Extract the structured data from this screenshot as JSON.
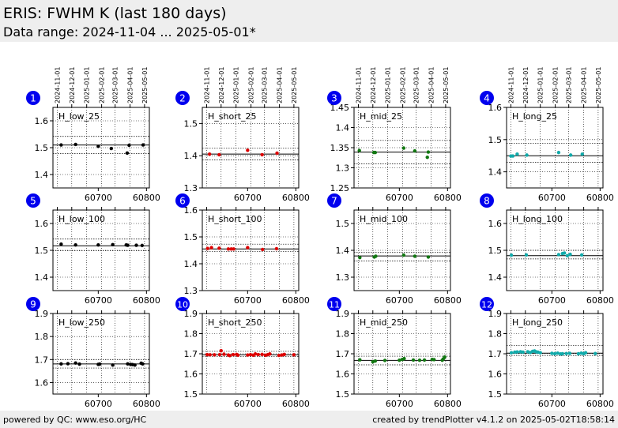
{
  "header": {
    "title": "ERIS: FWHM K (last 180 days)",
    "subtitle": "Data range: 2024-11-04 ... 2025-05-01*"
  },
  "footer": {
    "left": "powered by QC: www.eso.org/HC",
    "right": "created by trendPlotter v4.1.2 on 2025-05-02T18:58:14"
  },
  "colors": {
    "badge": "#0000ee",
    "black": "#000000",
    "red": "#dd0000",
    "green": "#117711",
    "teal": "#11aaaa"
  },
  "date_labels": [
    "2024-11-01",
    "2024-12-01",
    "2025-01-01",
    "2025-02-01",
    "2025-03-01",
    "2025-04-01",
    "2025-05-01"
  ],
  "date_mjd": [
    60615,
    60645,
    60676,
    60707,
    60735,
    60766,
    60796
  ],
  "xlim": [
    60606,
    60806
  ],
  "xticks": [
    60700,
    60800
  ],
  "chart_data": [
    {
      "type": "scatter",
      "badge": "1",
      "label": "H_low_25",
      "color": "black",
      "ylim": [
        1.35,
        1.65
      ],
      "yticks": [
        1.4,
        1.5,
        1.6
      ],
      "median": 1.51,
      "band": [
        1.478,
        1.542
      ],
      "points": [
        [
          60623,
          1.51
        ],
        [
          60653,
          1.512
        ],
        [
          60700,
          1.505
        ],
        [
          60727,
          1.497
        ],
        [
          60760,
          1.48
        ],
        [
          60764,
          1.509
        ],
        [
          60793,
          1.51
        ]
      ]
    },
    {
      "type": "scatter",
      "badge": "2",
      "label": "H_short_25",
      "color": "red",
      "ylim": [
        1.3,
        1.55
      ],
      "yticks": [
        1.3,
        1.4,
        1.5
      ],
      "median": 1.405,
      "band": [
        1.387,
        1.423
      ],
      "points": [
        [
          60621,
          1.405
        ],
        [
          60641,
          1.403
        ],
        [
          60700,
          1.417
        ],
        [
          60730,
          1.403
        ],
        [
          60761,
          1.408
        ]
      ]
    },
    {
      "type": "scatter",
      "badge": "3",
      "label": "H_mid_25",
      "color": "green",
      "ylim": [
        1.25,
        1.45
      ],
      "yticks": [
        1.25,
        1.3,
        1.35,
        1.4,
        1.45
      ],
      "median": 1.339,
      "band": [
        1.31,
        1.368
      ],
      "points": [
        [
          60617,
          1.343
        ],
        [
          60647,
          1.338
        ],
        [
          60650,
          1.338
        ],
        [
          60709,
          1.349
        ],
        [
          60732,
          1.342
        ],
        [
          60758,
          1.326
        ],
        [
          60760,
          1.339
        ]
      ]
    },
    {
      "type": "scatter",
      "badge": "4",
      "label": "H_long_25",
      "color": "teal",
      "ylim": [
        1.35,
        1.6
      ],
      "yticks": [
        1.4,
        1.5,
        1.6
      ],
      "median": 1.45,
      "band": [
        1.43,
        1.488
      ],
      "points": [
        [
          60615,
          1.449
        ],
        [
          60619,
          1.449
        ],
        [
          60628,
          1.455
        ],
        [
          60648,
          1.452
        ],
        [
          60714,
          1.46
        ],
        [
          60739,
          1.452
        ],
        [
          60763,
          1.455
        ]
      ]
    },
    {
      "type": "scatter",
      "badge": "5",
      "label": "H_low_100",
      "color": "black",
      "ylim": [
        1.35,
        1.65
      ],
      "yticks": [
        1.4,
        1.5,
        1.6
      ],
      "median": 1.517,
      "band": [
        1.498,
        1.542
      ],
      "points": [
        [
          60623,
          1.523
        ],
        [
          60653,
          1.52
        ],
        [
          60700,
          1.52
        ],
        [
          60730,
          1.521
        ],
        [
          60758,
          1.52
        ],
        [
          60761,
          1.519
        ],
        [
          60779,
          1.519
        ],
        [
          60791,
          1.518
        ]
      ]
    },
    {
      "type": "scatter",
      "badge": "6",
      "label": "H_short_100",
      "color": "red",
      "ylim": [
        1.3,
        1.6
      ],
      "yticks": [
        1.3,
        1.4,
        1.5,
        1.6
      ],
      "median": 1.455,
      "band": [
        1.445,
        1.473
      ],
      "points": [
        [
          60617,
          1.457
        ],
        [
          60625,
          1.46
        ],
        [
          60641,
          1.458
        ],
        [
          60660,
          1.455
        ],
        [
          60666,
          1.455
        ],
        [
          60671,
          1.455
        ],
        [
          60700,
          1.46
        ],
        [
          60731,
          1.453
        ],
        [
          60760,
          1.456
        ]
      ]
    },
    {
      "type": "scatter",
      "badge": "7",
      "label": "H_mid_100",
      "color": "green",
      "ylim": [
        1.25,
        1.55
      ],
      "yticks": [
        1.3,
        1.4,
        1.5
      ],
      "median": 1.379,
      "band": [
        1.36,
        1.392
      ],
      "points": [
        [
          60618,
          1.373
        ],
        [
          60648,
          1.375
        ],
        [
          60651,
          1.378
        ],
        [
          60709,
          1.382
        ],
        [
          60732,
          1.378
        ],
        [
          60760,
          1.375
        ]
      ]
    },
    {
      "type": "scatter",
      "badge": "8",
      "label": "H_long_100",
      "color": "teal",
      "ylim": [
        1.35,
        1.65
      ],
      "yticks": [
        1.4,
        1.5,
        1.6
      ],
      "median": 1.48,
      "band": [
        1.468,
        1.5
      ],
      "points": [
        [
          60616,
          1.482
        ],
        [
          60647,
          1.483
        ],
        [
          60714,
          1.484
        ],
        [
          60722,
          1.488
        ],
        [
          60726,
          1.49
        ],
        [
          60732,
          1.48
        ],
        [
          60738,
          1.485
        ],
        [
          60762,
          1.483
        ]
      ]
    },
    {
      "type": "scatter",
      "badge": "9",
      "label": "H_low_250",
      "color": "black",
      "ylim": [
        1.55,
        1.9
      ],
      "yticks": [
        1.6,
        1.7,
        1.8,
        1.9
      ],
      "median": 1.681,
      "band": [
        1.663,
        1.7
      ],
      "points": [
        [
          60623,
          1.681
        ],
        [
          60637,
          1.682
        ],
        [
          60653,
          1.685
        ],
        [
          60661,
          1.68
        ],
        [
          60700,
          1.679
        ],
        [
          60703,
          1.68
        ],
        [
          60730,
          1.676
        ],
        [
          60761,
          1.681
        ],
        [
          60767,
          1.679
        ],
        [
          60771,
          1.678
        ],
        [
          60776,
          1.676
        ],
        [
          60789,
          1.684
        ],
        [
          60792,
          1.681
        ]
      ]
    },
    {
      "type": "scatter",
      "badge": "10",
      "label": "H_short_250",
      "color": "red",
      "ylim": [
        1.5,
        1.9
      ],
      "yticks": [
        1.5,
        1.6,
        1.7,
        1.8,
        1.9
      ],
      "median": 1.695,
      "band": [
        1.687,
        1.712
      ],
      "points": [
        [
          60616,
          1.696
        ],
        [
          60622,
          1.695
        ],
        [
          60631,
          1.695
        ],
        [
          60642,
          1.696
        ],
        [
          60645,
          1.715
        ],
        [
          60651,
          1.698
        ],
        [
          60660,
          1.694
        ],
        [
          60663,
          1.691
        ],
        [
          60670,
          1.696
        ],
        [
          60677,
          1.697
        ],
        [
          60680,
          1.693
        ],
        [
          60700,
          1.694
        ],
        [
          60706,
          1.696
        ],
        [
          60712,
          1.693
        ],
        [
          60716,
          1.699
        ],
        [
          60722,
          1.696
        ],
        [
          60730,
          1.697
        ],
        [
          60737,
          1.693
        ],
        [
          60742,
          1.696
        ],
        [
          60746,
          1.699
        ],
        [
          60765,
          1.692
        ],
        [
          60771,
          1.694
        ],
        [
          60776,
          1.697
        ],
        [
          60796,
          1.695
        ]
      ]
    },
    {
      "type": "scatter",
      "badge": "11",
      "label": "H_mid_250",
      "color": "green",
      "ylim": [
        1.5,
        1.9
      ],
      "yticks": [
        1.5,
        1.6,
        1.7,
        1.8,
        1.9
      ],
      "median": 1.667,
      "band": [
        1.645,
        1.688
      ],
      "points": [
        [
          60618,
          1.67
        ],
        [
          60645,
          1.66
        ],
        [
          60650,
          1.664
        ],
        [
          60670,
          1.667
        ],
        [
          60700,
          1.668
        ],
        [
          60706,
          1.672
        ],
        [
          60710,
          1.676
        ],
        [
          60729,
          1.669
        ],
        [
          60742,
          1.668
        ],
        [
          60752,
          1.669
        ],
        [
          60768,
          1.672
        ],
        [
          60772,
          1.671
        ],
        [
          60789,
          1.668
        ],
        [
          60791,
          1.674
        ],
        [
          60794,
          1.684
        ]
      ]
    },
    {
      "type": "scatter",
      "badge": "12",
      "label": "H_long_250",
      "color": "teal",
      "ylim": [
        1.5,
        1.9
      ],
      "yticks": [
        1.5,
        1.6,
        1.7,
        1.8,
        1.9
      ],
      "median": 1.703,
      "band": [
        1.69,
        1.742
      ],
      "points": [
        [
          60616,
          1.705
        ],
        [
          60623,
          1.708
        ],
        [
          60628,
          1.709
        ],
        [
          60635,
          1.71
        ],
        [
          60640,
          1.708
        ],
        [
          60650,
          1.71
        ],
        [
          60655,
          1.706
        ],
        [
          60660,
          1.712
        ],
        [
          60664,
          1.714
        ],
        [
          60667,
          1.71
        ],
        [
          60671,
          1.708
        ],
        [
          60676,
          1.705
        ],
        [
          60700,
          1.702
        ],
        [
          60706,
          1.7
        ],
        [
          60712,
          1.703
        ],
        [
          60718,
          1.699
        ],
        [
          60722,
          1.7
        ],
        [
          60730,
          1.701
        ],
        [
          60737,
          1.702
        ],
        [
          60755,
          1.7
        ],
        [
          60761,
          1.703
        ],
        [
          60766,
          1.7
        ],
        [
          60770,
          1.705
        ],
        [
          60790,
          1.701
        ]
      ]
    }
  ]
}
